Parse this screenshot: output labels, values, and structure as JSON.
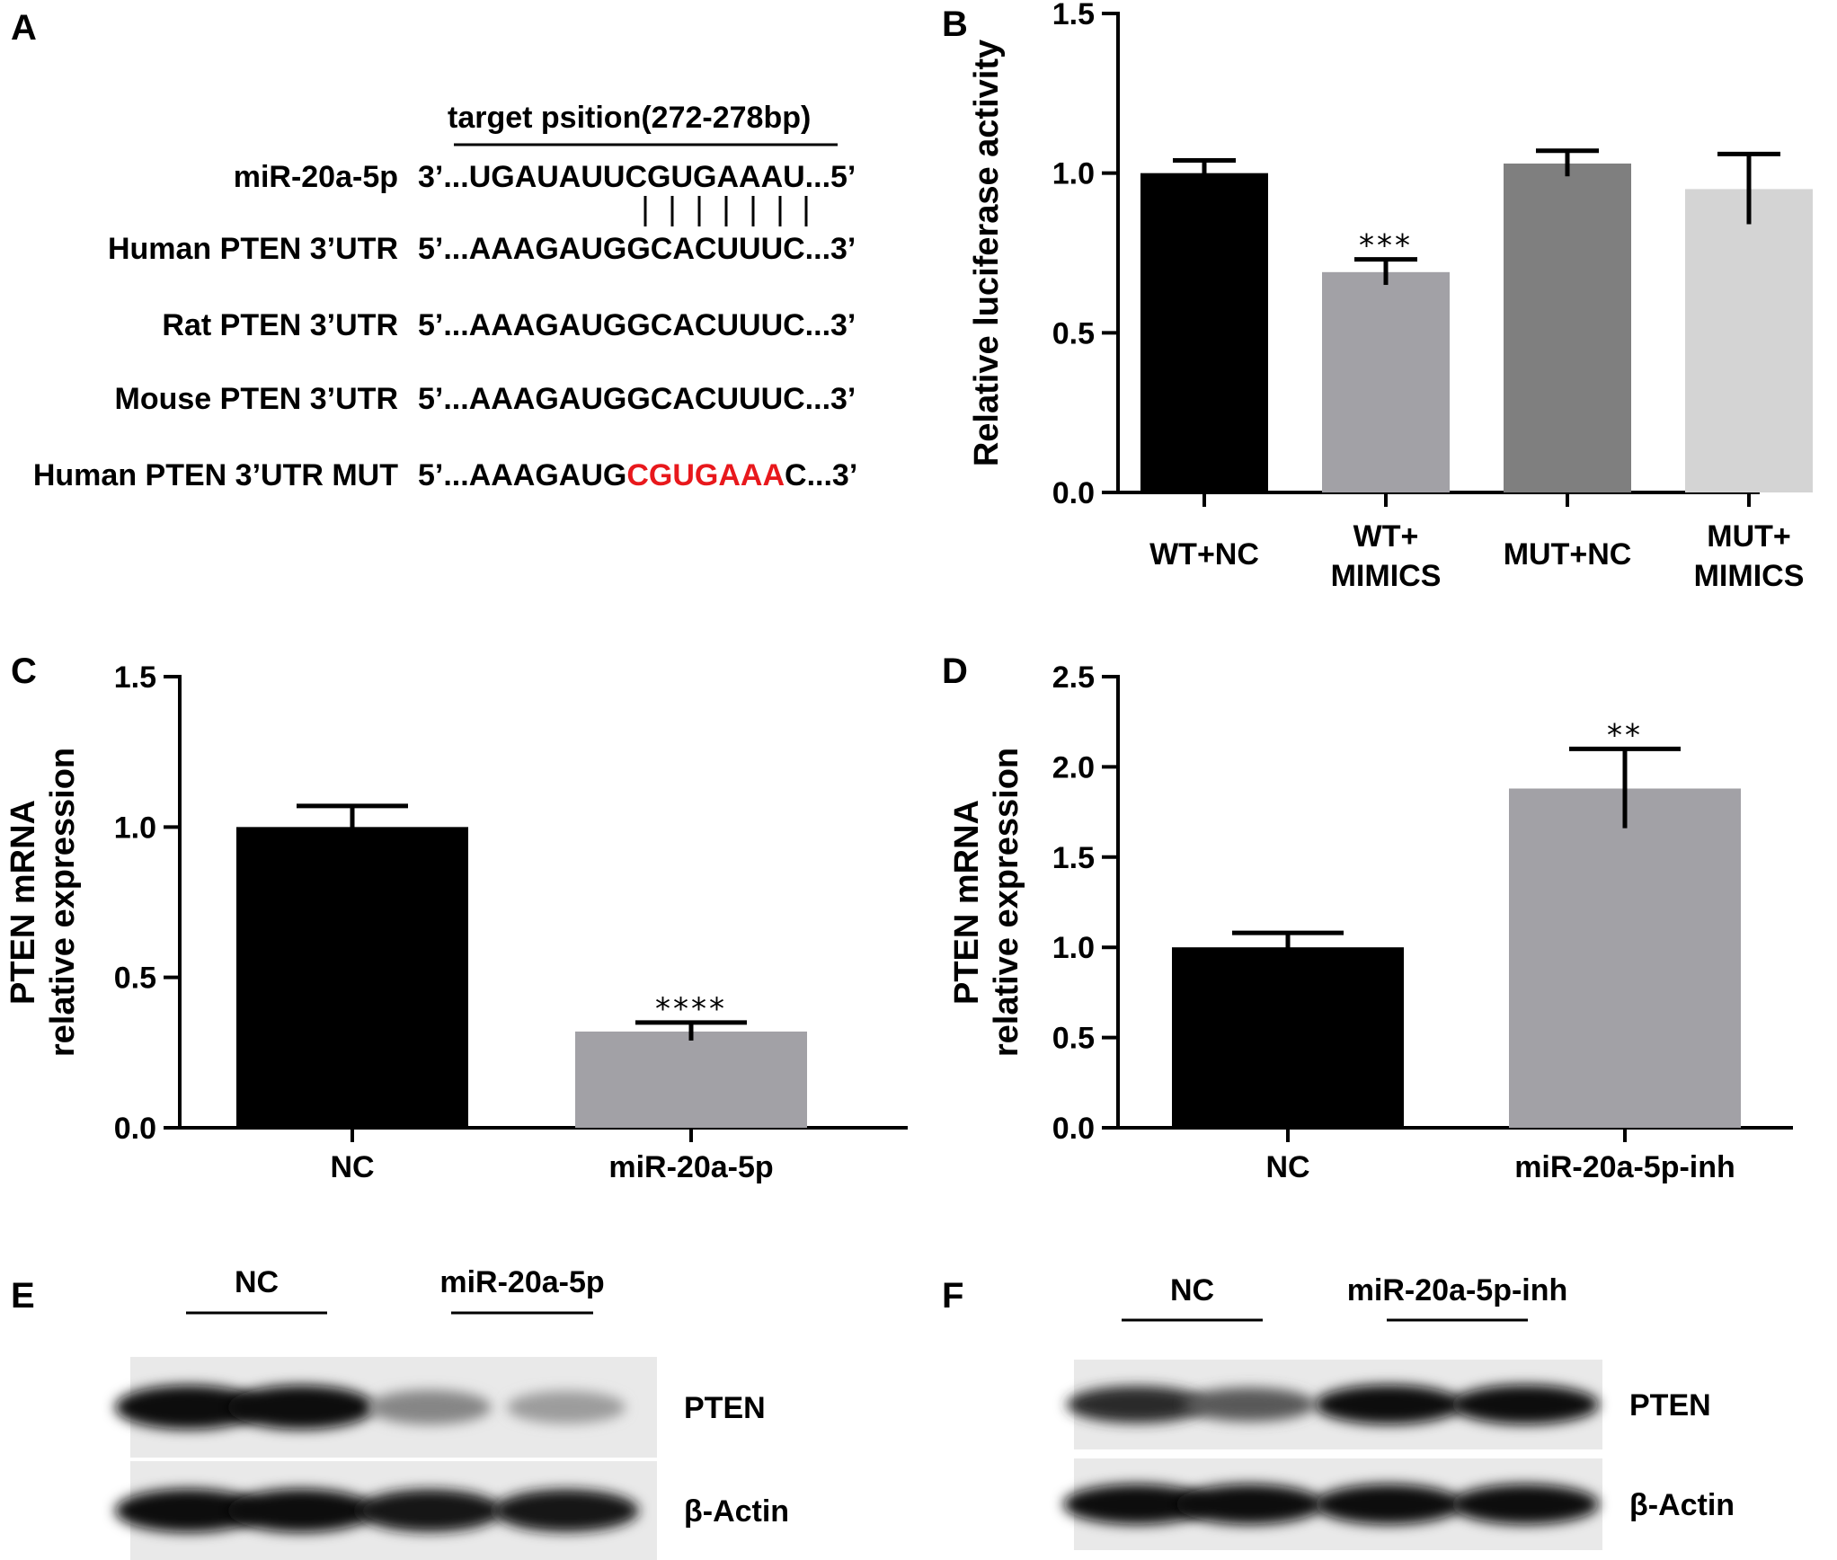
{
  "colors": {
    "black": "#000000",
    "gray": "#a2a1a6",
    "darkgray": "#7f7f7f",
    "lightgray": "#d4d4d4",
    "mut_red": "#e8181c"
  },
  "panel_letters": [
    "A",
    "B",
    "C",
    "D",
    "E",
    "F"
  ],
  "panel_a": {
    "target_label": "target psition(272-278bp)",
    "rows": [
      {
        "name_plain": "miR-20a-5p",
        "name_bold": "",
        "seq_prefix": "3’...UGAUAUUCGUGAAAU...5’",
        "seq_mut": "",
        "seq_suffix": ""
      },
      {
        "name_plain": "Human",
        "name_bold": "PTEN 3’UTR",
        "seq_prefix": "5’...AAAGAUGGCACUUUC...3’",
        "seq_mut": "",
        "seq_suffix": ""
      },
      {
        "name_plain": "Rat",
        "name_bold": "PTEN 3’UTR",
        "seq_prefix": "5’...AAAGAUGGCACUUUC...3’",
        "seq_mut": "",
        "seq_suffix": ""
      },
      {
        "name_plain": "Mouse",
        "name_bold": "PTEN 3’UTR",
        "seq_prefix": "5’...AAAGAUGGCACUUUC...3’",
        "seq_mut": "",
        "seq_suffix": ""
      },
      {
        "name_plain": "Human",
        "name_bold": "PTEN 3’UTR MUT",
        "seq_prefix": "5’...AAAGAUG",
        "seq_mut": "CGUGAAA",
        "seq_suffix": "C...3’"
      }
    ]
  },
  "chart_data": [
    {
      "type": "bar",
      "panel": "B",
      "ylabel": "Relative luciferase activity",
      "xlabel": "",
      "ylim": [
        0,
        1.5
      ],
      "yticks": [
        "0.0",
        "0.5",
        "1.0",
        "1.5"
      ],
      "ytick_values": [
        0,
        0.5,
        1.0,
        1.5
      ],
      "categories": [
        "WT+NC",
        "WT+\nMIMICS",
        "MUT+NC",
        "MUT+\nMIMICS"
      ],
      "values": [
        1.0,
        0.69,
        1.03,
        0.95
      ],
      "errors": [
        0.04,
        0.04,
        0.04,
        0.11
      ],
      "significance": [
        "",
        "***",
        "",
        ""
      ],
      "bar_colors": [
        "#000000",
        "#a2a1a6",
        "#7f7f7f",
        "#d4d4d4"
      ]
    },
    {
      "type": "bar",
      "panel": "C",
      "ylabel": "PTEN mRNA\nrelative expression",
      "xlabel": "",
      "ylim": [
        0,
        1.5
      ],
      "yticks": [
        "0.0",
        "0.5",
        "1.0",
        "1.5"
      ],
      "ytick_values": [
        0,
        0.5,
        1.0,
        1.5
      ],
      "categories": [
        "NC",
        "miR-20a-5p"
      ],
      "values": [
        1.0,
        0.32
      ],
      "errors": [
        0.07,
        0.03
      ],
      "significance": [
        "",
        "****"
      ],
      "bar_colors": [
        "#000000",
        "#a2a1a6"
      ]
    },
    {
      "type": "bar",
      "panel": "D",
      "ylabel": "PTEN mRNA\nrelative expression",
      "xlabel": "",
      "ylim": [
        0,
        2.5
      ],
      "yticks": [
        "0.0",
        "0.5",
        "1.0",
        "1.5",
        "2.0",
        "2.5"
      ],
      "ytick_values": [
        0,
        0.5,
        1.0,
        1.5,
        2.0,
        2.5
      ],
      "categories": [
        "NC",
        "miR-20a-5p-inh"
      ],
      "values": [
        1.0,
        1.88
      ],
      "errors": [
        0.08,
        0.22
      ],
      "significance": [
        "",
        "**"
      ],
      "bar_colors": [
        "#000000",
        "#a2a1a6"
      ]
    }
  ],
  "blots": [
    {
      "panel": "E",
      "groups": [
        "NC",
        "miR-20a-5p"
      ],
      "bands": [
        "PTEN",
        "β-Actin"
      ],
      "pten_intensity": [
        1.0,
        1.0,
        0.45,
        0.35
      ],
      "actin_intensity": [
        1.0,
        1.0,
        0.95,
        0.95
      ]
    },
    {
      "panel": "F",
      "groups": [
        "NC",
        "miR-20a-5p-inh"
      ],
      "bands": [
        "PTEN",
        "β-Actin"
      ],
      "pten_intensity": [
        0.85,
        0.65,
        1.0,
        1.0
      ],
      "actin_intensity": [
        1.0,
        1.0,
        1.0,
        1.0
      ]
    }
  ]
}
